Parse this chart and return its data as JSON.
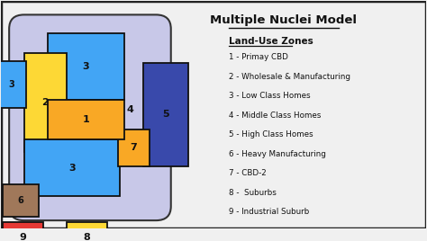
{
  "title": "Multiple Nuclei Model",
  "background_color": "#f0f0f0",
  "border_color": "#222222",
  "legend_title": "Land-Use Zones",
  "legend_items": [
    "1 - Primay CBD",
    "2 - Wholesale & Manufacturing",
    "3 - Low Class Homes",
    "4 - Middle Class Homes",
    "5 - High Class Homes",
    "6 - Heavy Manufacturing",
    "7 - CBD-2",
    "8 -  Suburbs",
    "9 - Industrial Suburb"
  ],
  "colors": {
    "1": "#f9a825",
    "2": "#fdd835",
    "3": "#42a5f5",
    "4": "#c8c8e8",
    "5": "#3949ab",
    "6": "#a0785a",
    "7": "#f9a825",
    "8": "#fdd835",
    "9": "#e53935",
    "oval": "#c8c8e8"
  }
}
